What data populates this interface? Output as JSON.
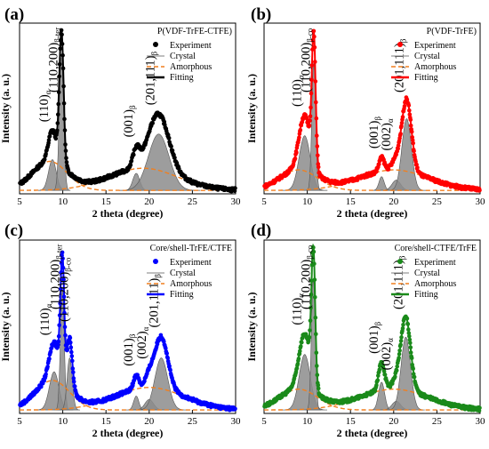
{
  "chart_data": [
    {
      "type": "line",
      "panel": "(a)",
      "legend_title": "P(VDF-TrFE-CTFE)",
      "xlabel": "2 theta (degree)",
      "ylabel": "Intensity (a. u.)",
      "xlim": [
        5,
        30
      ],
      "xticks": [
        5,
        10,
        15,
        20,
        25,
        30
      ],
      "colors": {
        "data": "#000000",
        "fit": "#000000",
        "crystal": "#7f7f7f",
        "amorphous": "#f07f1f"
      },
      "legend": [
        "Experiment",
        "Crystal",
        "Amorphous",
        "Fitting"
      ],
      "peak_annotations": [
        {
          "text": "(110)",
          "sub": "α",
          "x": 8.7
        },
        {
          "text": "(110,200)",
          "sub": "β-ter",
          "x": 9.8
        },
        {
          "text": "(001)",
          "sub": "β",
          "x": 18.5
        },
        {
          "text": "(201,111)",
          "sub": "β",
          "x": 21.0
        }
      ],
      "components": [
        {
          "kind": "crystal",
          "center": 8.8,
          "height": 0.18,
          "sigma": 0.45
        },
        {
          "kind": "crystal",
          "center": 9.85,
          "height": 0.78,
          "sigma": 0.25
        },
        {
          "kind": "crystal",
          "center": 18.5,
          "height": 0.1,
          "sigma": 0.4
        },
        {
          "kind": "crystal",
          "center": 21.1,
          "height": 0.33,
          "sigma": 1.2
        },
        {
          "kind": "amorphous",
          "center": 8.5,
          "height": 0.17,
          "sigma": 2.0
        },
        {
          "kind": "amorphous",
          "center": 19.3,
          "height": 0.13,
          "sigma": 4.0
        }
      ]
    },
    {
      "type": "line",
      "panel": "(b)",
      "legend_title": "P(VDF-TrFE)",
      "xlabel": "2 theta (degree)",
      "ylabel": "Intensity (a. u.)",
      "xlim": [
        5,
        30
      ],
      "xticks": [
        5,
        10,
        15,
        20,
        25,
        30
      ],
      "colors": {
        "data": "#ff0000",
        "fit": "#ff0000",
        "crystal": "#7f7f7f",
        "amorphous": "#f07f1f"
      },
      "legend": [
        "Experiment",
        "Crystal",
        "Amorphous",
        "Fitting"
      ],
      "peak_annotations": [
        {
          "text": "(110)",
          "sub": "α",
          "x": 9.7
        },
        {
          "text": "(110,200)",
          "sub": "β-co",
          "x": 10.7
        },
        {
          "text": "(001)",
          "sub": "β",
          "x": 18.6
        },
        {
          "text": "(002)",
          "sub": "α",
          "x": 20.0
        },
        {
          "text": "(201,111)",
          "sub": "β",
          "x": 21.5
        }
      ],
      "components": [
        {
          "kind": "crystal",
          "center": 9.7,
          "height": 0.32,
          "sigma": 0.65
        },
        {
          "kind": "crystal",
          "center": 10.75,
          "height": 0.75,
          "sigma": 0.22
        },
        {
          "kind": "crystal",
          "center": 18.6,
          "height": 0.08,
          "sigma": 0.3
        },
        {
          "kind": "crystal",
          "center": 20.3,
          "height": 0.06,
          "sigma": 0.5
        },
        {
          "kind": "crystal",
          "center": 21.5,
          "height": 0.42,
          "sigma": 0.55
        },
        {
          "kind": "amorphous",
          "center": 9.0,
          "height": 0.12,
          "sigma": 2.2
        },
        {
          "kind": "amorphous",
          "center": 20.0,
          "height": 0.12,
          "sigma": 4.0
        }
      ]
    },
    {
      "type": "line",
      "panel": "(c)",
      "legend_title": "Core/shell-TrFE/CTFE",
      "xlabel": "2 theta (degree)",
      "ylabel": "Intensity (a. u.)",
      "xlim": [
        5,
        30
      ],
      "xticks": [
        5,
        10,
        15,
        20,
        25,
        30
      ],
      "colors": {
        "data": "#0000ff",
        "fit": "#0000ff",
        "crystal": "#7f7f7f",
        "amorphous": "#f07f1f"
      },
      "legend": [
        "Experiment",
        "Crystal",
        "Amorphous",
        "Fitting"
      ],
      "peak_annotations": [
        {
          "text": "(110)",
          "sub": "α",
          "x": 8.8
        },
        {
          "text": "(110,200)",
          "sub": "β-ter",
          "x": 10.0
        },
        {
          "text": "(110,200)",
          "sub": "β-co",
          "x": 11.0
        },
        {
          "text": "(001)",
          "sub": "β",
          "x": 18.5
        },
        {
          "text": "(002)",
          "sub": "α",
          "x": 20.0
        },
        {
          "text": "(201,111)",
          "sub": "β",
          "x": 21.4
        }
      ],
      "components": [
        {
          "kind": "crystal",
          "center": 9.0,
          "height": 0.22,
          "sigma": 0.55
        },
        {
          "kind": "crystal",
          "center": 9.95,
          "height": 0.7,
          "sigma": 0.22
        },
        {
          "kind": "crystal",
          "center": 10.8,
          "height": 0.3,
          "sigma": 0.3
        },
        {
          "kind": "crystal",
          "center": 18.5,
          "height": 0.08,
          "sigma": 0.3
        },
        {
          "kind": "crystal",
          "center": 20.0,
          "height": 0.06,
          "sigma": 0.5
        },
        {
          "kind": "crystal",
          "center": 21.4,
          "height": 0.3,
          "sigma": 0.75
        },
        {
          "kind": "amorphous",
          "center": 8.8,
          "height": 0.17,
          "sigma": 2.0
        },
        {
          "kind": "amorphous",
          "center": 20.0,
          "height": 0.13,
          "sigma": 4.0
        }
      ]
    },
    {
      "type": "line",
      "panel": "(d)",
      "legend_title": "Core/shell-CTFE/TrFE",
      "xlabel": "2 theta (degree)",
      "ylabel": "Intensity (a. u.)",
      "xlim": [
        5,
        30
      ],
      "xticks": [
        5,
        10,
        15,
        20,
        25,
        30
      ],
      "colors": {
        "data": "#1a8a1a",
        "fit": "#1a8a1a",
        "crystal": "#7f7f7f",
        "amorphous": "#f07f1f"
      },
      "legend": [
        "Experiment",
        "Crystal",
        "Amorphous",
        "Fitting"
      ],
      "peak_annotations": [
        {
          "text": "(110)",
          "sub": "α",
          "x": 9.7
        },
        {
          "text": "(110,200)",
          "sub": "β-co",
          "x": 10.7
        },
        {
          "text": "(001)",
          "sub": "β",
          "x": 18.6
        },
        {
          "text": "(002)",
          "sub": "α",
          "x": 20.0
        },
        {
          "text": "(201,111)",
          "sub": "β",
          "x": 21.4
        }
      ],
      "components": [
        {
          "kind": "crystal",
          "center": 9.7,
          "height": 0.32,
          "sigma": 0.65
        },
        {
          "kind": "crystal",
          "center": 10.7,
          "height": 0.75,
          "sigma": 0.22
        },
        {
          "kind": "crystal",
          "center": 18.6,
          "height": 0.16,
          "sigma": 0.35
        },
        {
          "kind": "crystal",
          "center": 20.3,
          "height": 0.05,
          "sigma": 0.5
        },
        {
          "kind": "crystal",
          "center": 21.4,
          "height": 0.42,
          "sigma": 0.55
        },
        {
          "kind": "amorphous",
          "center": 9.0,
          "height": 0.12,
          "sigma": 2.2
        },
        {
          "kind": "amorphous",
          "center": 20.0,
          "height": 0.12,
          "sigma": 4.0
        }
      ]
    }
  ]
}
